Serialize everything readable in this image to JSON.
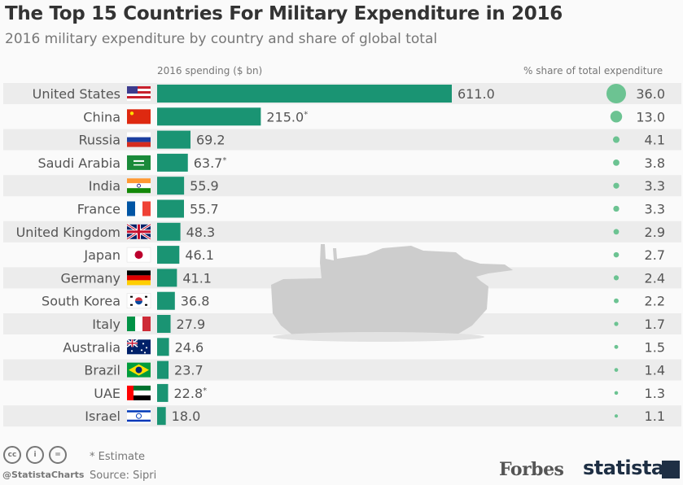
{
  "header": {
    "title": "The Top 15 Countries For Military Expenditure in 2016",
    "subtitle": "2016 military expenditure by country and share of global total"
  },
  "column_headers": {
    "spending": "2016 spending ($ bn)",
    "share": "% share of total expenditure"
  },
  "chart_data": {
    "type": "bar",
    "title": "The Top 15 Countries For Military Expenditure in 2016",
    "subtitle": "2016 military expenditure by country and share of global total",
    "xlabel": "2016 spending ($ bn)",
    "ylabel": "",
    "orientation": "horizontal",
    "categories": [
      "United States",
      "China",
      "Russia",
      "Saudi Arabia",
      "India",
      "France",
      "United Kingdom",
      "Japan",
      "Germany",
      "South Korea",
      "Italy",
      "Australia",
      "Brazil",
      "UAE",
      "Israel"
    ],
    "series": [
      {
        "name": "2016 spending ($ bn)",
        "values": [
          611.0,
          215.0,
          69.2,
          63.7,
          55.9,
          55.7,
          48.3,
          46.1,
          41.1,
          36.8,
          27.9,
          24.6,
          23.7,
          22.8,
          18.0
        ]
      },
      {
        "name": "% share of total expenditure",
        "values": [
          36.0,
          13.0,
          4.1,
          3.8,
          3.3,
          3.3,
          2.9,
          2.7,
          2.4,
          2.2,
          1.7,
          1.5,
          1.4,
          1.3,
          1.1
        ]
      }
    ],
    "value_labels": [
      "611.0",
      "215.0*",
      "69.2",
      "63.7*",
      "55.9",
      "55.7",
      "48.3",
      "46.1",
      "41.1",
      "36.8",
      "27.9",
      "24.6",
      "23.7",
      "22.8*",
      "18.0"
    ],
    "share_labels": [
      "36.0",
      "13.0",
      "4.1",
      "3.8",
      "3.3",
      "3.3",
      "2.9",
      "2.7",
      "2.4",
      "2.2",
      "1.7",
      "1.5",
      "1.4",
      "1.3",
      "1.1"
    ],
    "flags": [
      "us-flag",
      "china-flag",
      "russia-flag",
      "saudi-arabia-flag",
      "india-flag",
      "france-flag",
      "uk-flag",
      "japan-flag",
      "germany-flag",
      "south-korea-flag",
      "italy-flag",
      "australia-flag",
      "brazil-flag",
      "uae-flag",
      "israel-flag"
    ],
    "xlim": [
      0,
      611
    ],
    "grid": false,
    "colors": {
      "bar": "#1a9473",
      "bubble": "#6cc392",
      "stripe": "#ececec"
    }
  },
  "footer": {
    "note": "* Estimate",
    "source": "Source: Sipri",
    "handle": "@StatistaCharts",
    "license_icons": [
      "cc",
      "i",
      "="
    ],
    "brand1": "Forbes",
    "brand2": "statista"
  }
}
